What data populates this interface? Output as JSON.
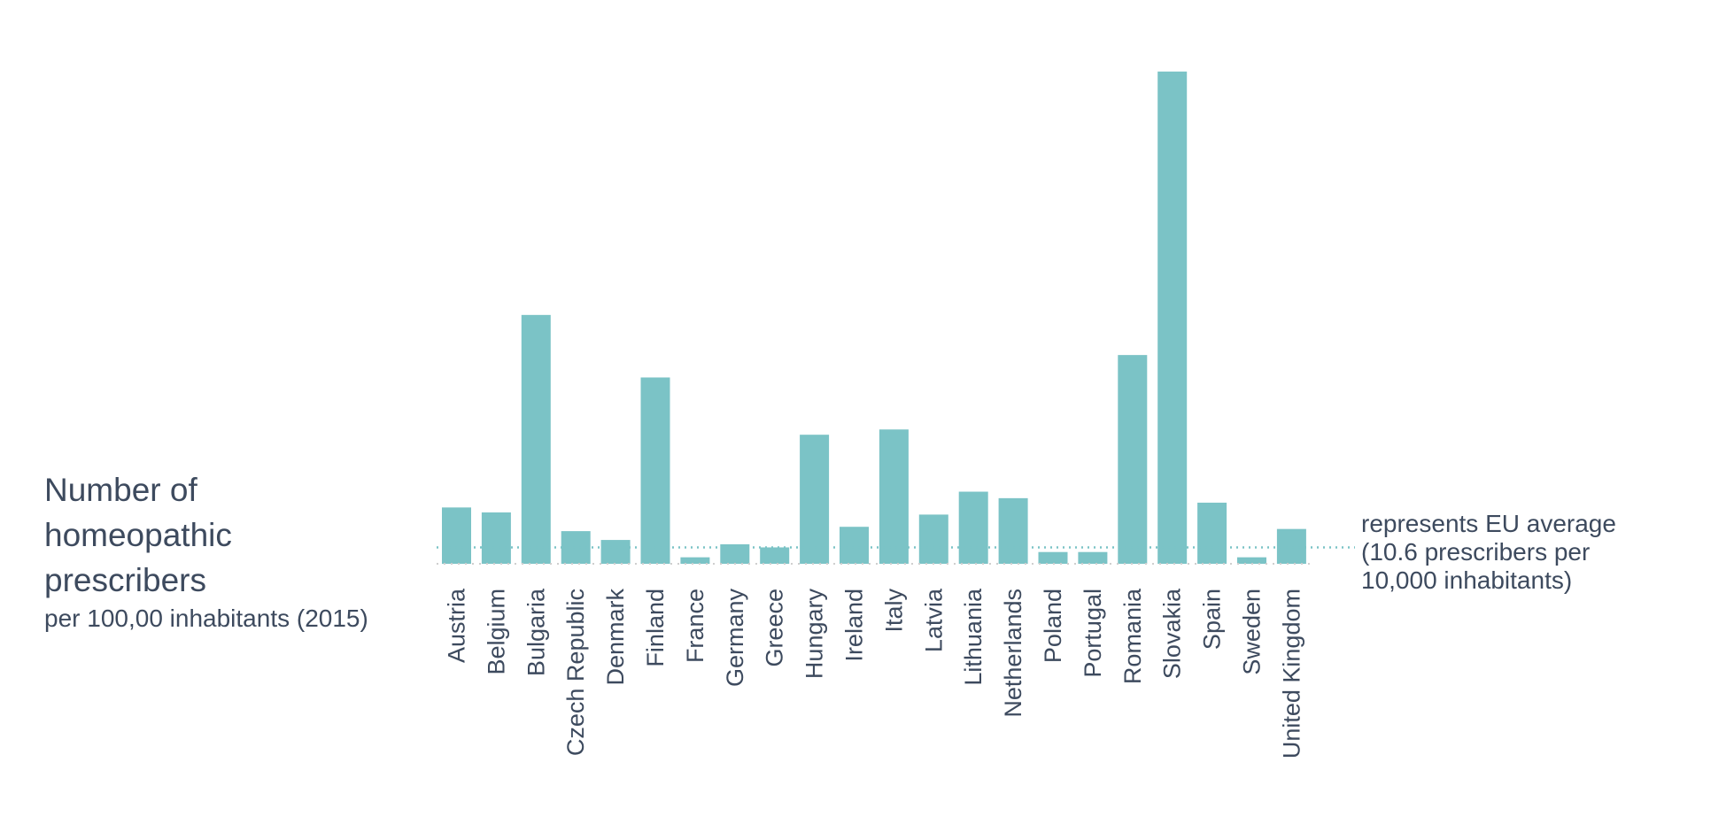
{
  "title": {
    "line1": "Number of",
    "line2": "homeopathic",
    "line3": "prescribers",
    "subtitle": "per 100,00 inhabitants (2015)"
  },
  "average_note": {
    "line1": "represents EU average",
    "line2": "(10.6 prescribers per",
    "line3": "10,000 inhabitants)"
  },
  "colors": {
    "bar": "#7bc3c6",
    "average_line": "#7bc3c6",
    "text": "#3d4a5e",
    "baseline": "#cfcfcf"
  },
  "chart_data": {
    "type": "bar",
    "categories": [
      "Austria",
      "Belgium",
      "Bulgaria",
      "Czech Republic",
      "Denmark",
      "Finland",
      "France",
      "Germany",
      "Greece",
      "Hungary",
      "Ireland",
      "Italy",
      "Latvia",
      "Lithuania",
      "Netherlands",
      "Poland",
      "Portugal",
      "Romania",
      "Slovakia",
      "Spain",
      "Sweden",
      "United Kingdom"
    ],
    "values": [
      36.4,
      33.2,
      160.8,
      21.1,
      15.4,
      120.4,
      4.2,
      12.6,
      10.6,
      83.4,
      23.9,
      86.8,
      31.8,
      46.6,
      42.4,
      7.6,
      7.6,
      134.9,
      318.1,
      39.5,
      4.2,
      22.5
    ],
    "average": 10.6,
    "ylim": [
      0,
      330
    ],
    "xlabel": "",
    "ylabel": "",
    "grid": false,
    "legend": "none"
  }
}
